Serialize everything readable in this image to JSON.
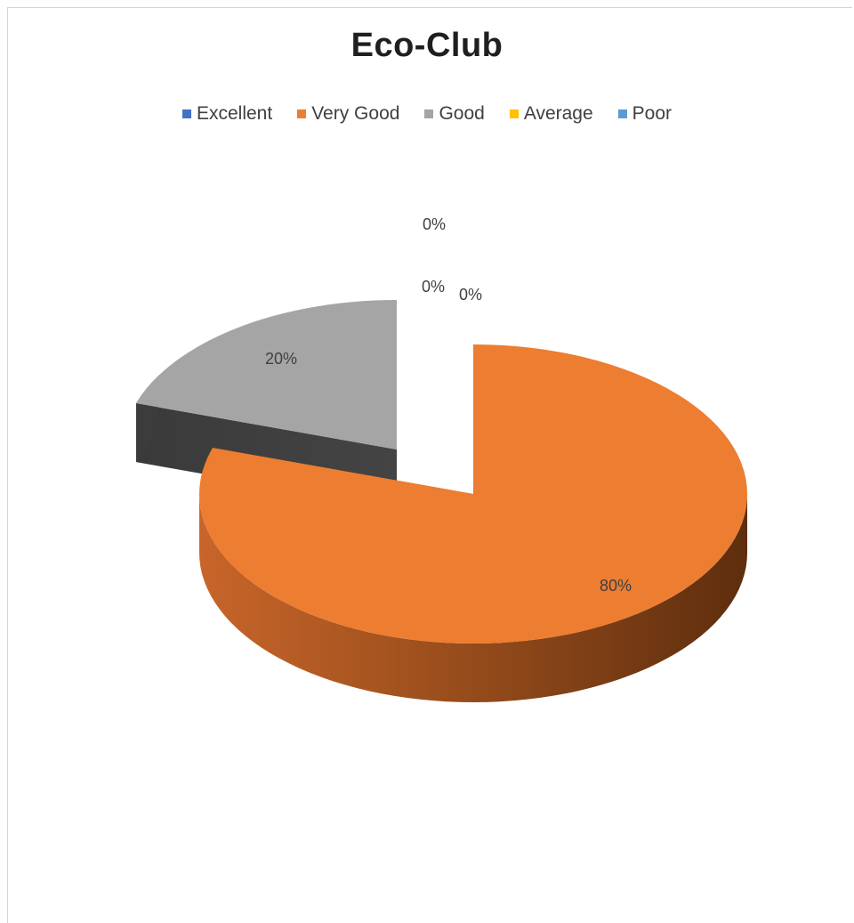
{
  "chart_data": {
    "type": "pie",
    "title": "Eco-Club",
    "legend_position": "top",
    "style": "3d-exploded",
    "series": [
      {
        "values": [
          0,
          80,
          20,
          0,
          0
        ]
      }
    ],
    "categories": [
      "Excellent",
      "Very Good",
      "Good",
      "Average",
      "Poor"
    ],
    "values": [
      0,
      80,
      20,
      0,
      0
    ],
    "data_labels": [
      "0%",
      "80%",
      "20%",
      "0%",
      "0%"
    ],
    "colors": [
      "#4472c4",
      "#ed7d31",
      "#a5a5a5",
      "#ffc000",
      "#5b9bd5"
    ]
  }
}
